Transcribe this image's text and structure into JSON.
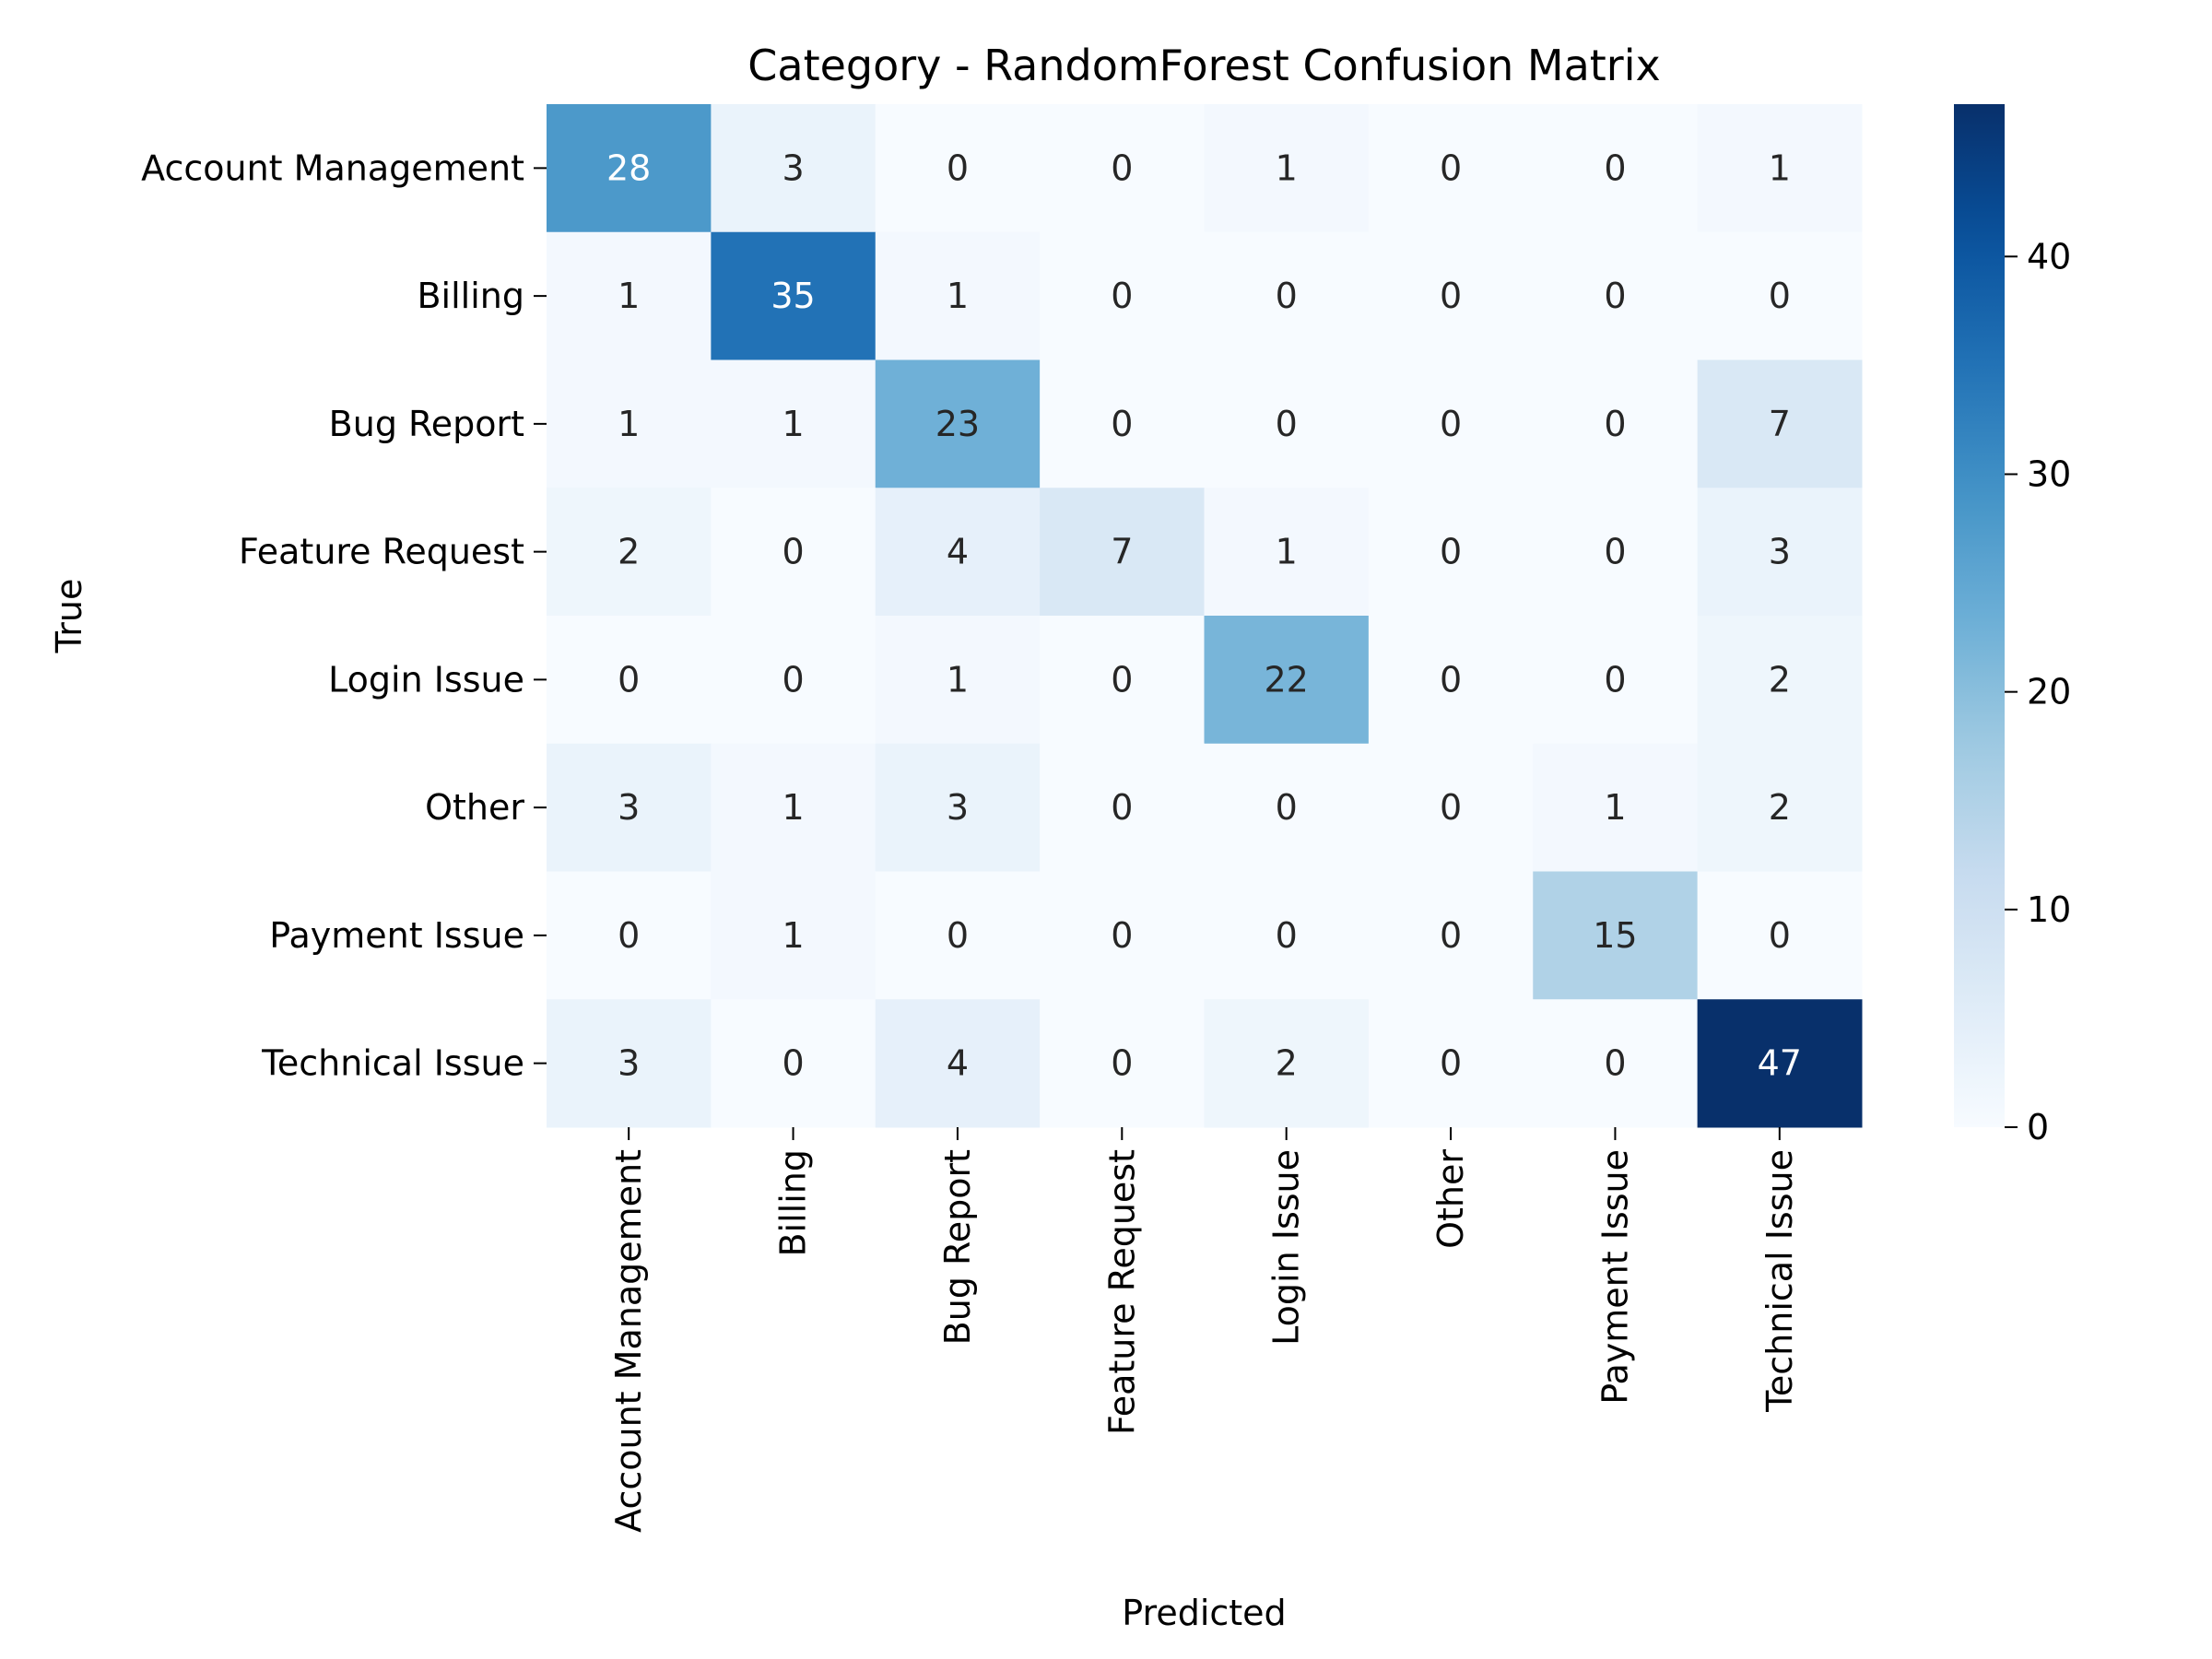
{
  "chart_data": {
    "type": "heatmap",
    "title": "Category - RandomForest Confusion Matrix",
    "xlabel": "Predicted",
    "ylabel": "True",
    "x_categories": [
      "Account Management",
      "Billing",
      "Bug Report",
      "Feature Request",
      "Login Issue",
      "Other",
      "Payment Issue",
      "Technical Issue"
    ],
    "y_categories": [
      "Account Management",
      "Billing",
      "Bug Report",
      "Feature Request",
      "Login Issue",
      "Other",
      "Payment Issue",
      "Technical Issue"
    ],
    "values": [
      [
        28,
        3,
        0,
        0,
        1,
        0,
        0,
        1
      ],
      [
        1,
        35,
        1,
        0,
        0,
        0,
        0,
        0
      ],
      [
        1,
        1,
        23,
        0,
        0,
        0,
        0,
        7
      ],
      [
        2,
        0,
        4,
        7,
        1,
        0,
        0,
        3
      ],
      [
        0,
        0,
        1,
        0,
        22,
        0,
        0,
        2
      ],
      [
        3,
        1,
        3,
        0,
        0,
        0,
        1,
        2
      ],
      [
        0,
        1,
        0,
        0,
        0,
        0,
        15,
        0
      ],
      [
        3,
        0,
        4,
        0,
        2,
        0,
        0,
        47
      ]
    ],
    "colorbar": {
      "min": 0,
      "max": 47,
      "ticks": [
        0,
        10,
        20,
        30,
        40
      ],
      "colormap": "Blues"
    },
    "grid": false
  }
}
